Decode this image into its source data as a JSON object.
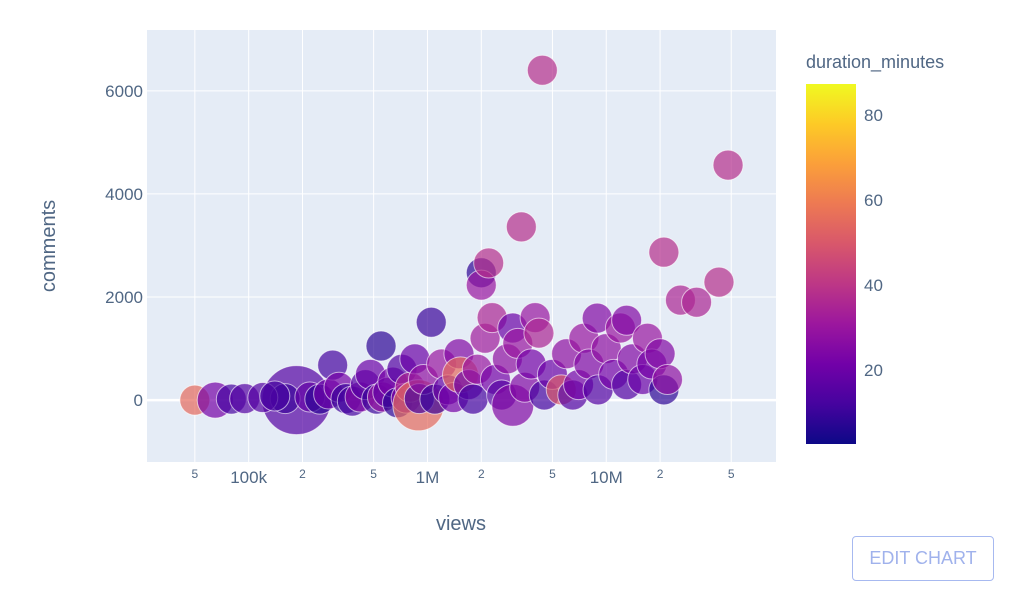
{
  "chart_data": {
    "type": "scatter",
    "xlabel": "views",
    "ylabel": "comments",
    "x_scale": "log",
    "xlim": [
      27000,
      89000000
    ],
    "ylim": [
      -1200,
      7180
    ],
    "grid": true,
    "x_major_ticks": [
      {
        "value": 100000,
        "label": "100k"
      },
      {
        "value": 1000000,
        "label": "1M"
      },
      {
        "value": 10000000,
        "label": "10M"
      }
    ],
    "x_minor_ticks": [
      {
        "value": 50000,
        "label": "5"
      },
      {
        "value": 200000,
        "label": "2"
      },
      {
        "value": 500000,
        "label": "5"
      },
      {
        "value": 2000000,
        "label": "2"
      },
      {
        "value": 5000000,
        "label": "5"
      },
      {
        "value": 20000000,
        "label": "2"
      },
      {
        "value": 50000000,
        "label": "5"
      }
    ],
    "y_ticks": [
      0,
      2000,
      4000,
      6000
    ],
    "colorbar": {
      "title": "duration_minutes",
      "range": [
        2.6,
        87.3
      ],
      "ticks": [
        20,
        40,
        60,
        80
      ],
      "colorscale": "plasma",
      "colors": [
        "#0d0887",
        "#46039f",
        "#7201a8",
        "#9c179e",
        "#bd3786",
        "#d8576b",
        "#ed7953",
        "#fb9f3a",
        "#fdca26",
        "#f0f921"
      ]
    },
    "points_columns": [
      "views",
      "comments",
      "duration_minutes",
      "relative_size"
    ],
    "points": [
      [
        50000,
        0,
        55,
        1
      ],
      [
        65000,
        0,
        22,
        1.2
      ],
      [
        80000,
        20,
        12,
        1
      ],
      [
        95000,
        30,
        15,
        1
      ],
      [
        185000,
        0,
        15,
        2.3
      ],
      [
        160000,
        30,
        10,
        1
      ],
      [
        120000,
        50,
        15,
        1
      ],
      [
        140000,
        80,
        12,
        1
      ],
      [
        220000,
        60,
        18,
        1
      ],
      [
        250000,
        20,
        8,
        1
      ],
      [
        280000,
        120,
        20,
        1
      ],
      [
        295000,
        680,
        12,
        1
      ],
      [
        320000,
        250,
        22,
        1
      ],
      [
        350000,
        30,
        10,
        1
      ],
      [
        380000,
        -20,
        12,
        1
      ],
      [
        420000,
        60,
        25,
        1
      ],
      [
        450000,
        300,
        15,
        1
      ],
      [
        480000,
        500,
        20,
        1
      ],
      [
        520000,
        20,
        10,
        1
      ],
      [
        550000,
        1050,
        8,
        1
      ],
      [
        560000,
        60,
        30,
        1
      ],
      [
        600000,
        150,
        18,
        1
      ],
      [
        640000,
        350,
        22,
        1
      ],
      [
        680000,
        -50,
        8,
        1
      ],
      [
        720000,
        600,
        15,
        1
      ],
      [
        760000,
        40,
        25,
        1
      ],
      [
        800000,
        250,
        35,
        1
      ],
      [
        850000,
        800,
        20,
        1
      ],
      [
        890000,
        -100,
        55,
        1.7
      ],
      [
        900000,
        30,
        12,
        1
      ],
      [
        950000,
        400,
        28,
        1
      ],
      [
        1050000,
        1510,
        10,
        1
      ],
      [
        1100000,
        20,
        10,
        1
      ],
      [
        1200000,
        700,
        30,
        1
      ],
      [
        1300000,
        200,
        18,
        1
      ],
      [
        1400000,
        50,
        22,
        1
      ],
      [
        1500000,
        900,
        25,
        1
      ],
      [
        1530000,
        490,
        55,
        1.2
      ],
      [
        1700000,
        300,
        20,
        1
      ],
      [
        1800000,
        20,
        12,
        1
      ],
      [
        1900000,
        600,
        30,
        1
      ],
      [
        2000000,
        2470,
        8,
        1
      ],
      [
        2000000,
        2230,
        30,
        1
      ],
      [
        2100000,
        1200,
        32,
        1
      ],
      [
        2200000,
        2660,
        38,
        1
      ],
      [
        2300000,
        1600,
        35,
        1
      ],
      [
        2400000,
        400,
        22,
        1
      ],
      [
        2600000,
        100,
        15,
        1
      ],
      [
        2800000,
        800,
        28,
        1
      ],
      [
        3000000,
        -100,
        25,
        1.4
      ],
      [
        3000000,
        1400,
        20,
        1
      ],
      [
        3200000,
        1100,
        30,
        1
      ],
      [
        3350000,
        3360,
        38,
        1
      ],
      [
        3500000,
        250,
        25,
        1
      ],
      [
        3800000,
        700,
        22,
        1
      ],
      [
        4000000,
        1600,
        30,
        1
      ],
      [
        4200000,
        1300,
        35,
        1
      ],
      [
        4390000,
        6400,
        38,
        1
      ],
      [
        4500000,
        100,
        12,
        1
      ],
      [
        5000000,
        500,
        20,
        1
      ],
      [
        5600000,
        200,
        50,
        1
      ],
      [
        6000000,
        900,
        28,
        1
      ],
      [
        6500000,
        100,
        15,
        1
      ],
      [
        7000000,
        300,
        22,
        1
      ],
      [
        7500000,
        1200,
        30,
        1
      ],
      [
        8000000,
        700,
        25,
        1
      ],
      [
        8900000,
        1590,
        25,
        1
      ],
      [
        9000000,
        200,
        15,
        1
      ],
      [
        10000000,
        1000,
        28,
        1
      ],
      [
        11000000,
        500,
        22,
        1
      ],
      [
        12000000,
        1400,
        30,
        1
      ],
      [
        13000000,
        1550,
        25,
        1
      ],
      [
        13000000,
        300,
        15,
        1
      ],
      [
        14000000,
        800,
        25,
        1
      ],
      [
        16000000,
        400,
        20,
        1
      ],
      [
        17000000,
        1200,
        30,
        1
      ],
      [
        18000000,
        700,
        22,
        1
      ],
      [
        20000000,
        900,
        25,
        1
      ],
      [
        21000000,
        200,
        8,
        1
      ],
      [
        21000000,
        2870,
        38,
        1
      ],
      [
        22000000,
        400,
        28,
        1
      ],
      [
        26000000,
        1940,
        35,
        1
      ],
      [
        32000000,
        1900,
        35,
        1
      ],
      [
        42700000,
        2290,
        38,
        1
      ],
      [
        48000000,
        4560,
        38,
        1
      ]
    ]
  },
  "edit_button": "EDIT CHART"
}
